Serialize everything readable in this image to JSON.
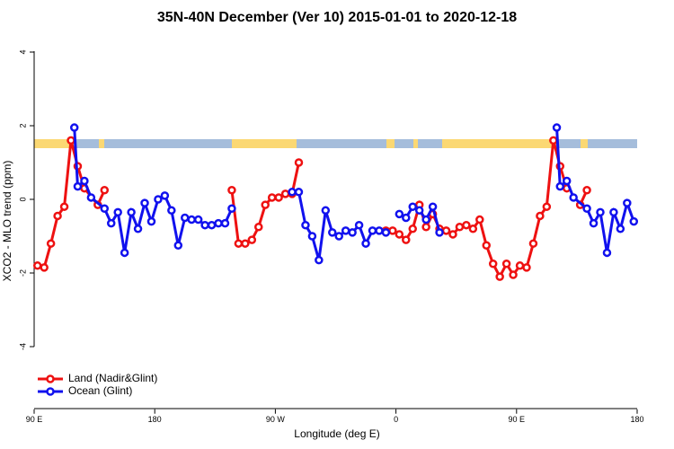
{
  "chart_data": {
    "type": "line",
    "title": "35N-40N December (Ver 10)   2015-01-01 to 2020-12-18",
    "x_label": "Longitude (deg E)",
    "y_label": "XCO2 - MLO trend (ppm)",
    "xlim": [
      90,
      540
    ],
    "ylim": [
      -5.7,
      4.4
    ],
    "xticks": [
      {
        "value": 90,
        "label": "90 E"
      },
      {
        "value": 180,
        "label": "180"
      },
      {
        "value": 270,
        "label": "90 W"
      },
      {
        "value": 360,
        "label": "0"
      },
      {
        "value": 450,
        "label": "90 E"
      },
      {
        "value": 540,
        "label": "180"
      }
    ],
    "yticks": [
      4,
      2,
      0,
      -2,
      -4
    ],
    "legend": "bottom-left",
    "series": [
      {
        "name": "Land (Nadir&Glint)",
        "color": "#ee1111",
        "x": [
          92.5,
          97.5,
          102.5,
          107.5,
          112.5,
          117.5,
          122.5,
          127.5,
          137.5,
          142.5,
          190,
          237.5,
          242.5,
          247.5,
          252.5,
          257.5,
          262.5,
          267.5,
          272.5,
          277.5,
          282.5,
          287.5,
          320,
          352.5,
          357.5,
          362.5,
          367.5,
          372.5,
          377.5,
          382.5,
          387.5,
          392.5,
          397.5,
          402.5,
          407.5,
          412.5,
          417.5,
          422.5,
          427.5,
          432.5,
          437.5,
          442.5,
          447.5,
          452.5,
          457.5,
          462.5,
          467.5,
          472.5,
          477.5,
          482.5,
          487.5,
          490,
          497.5,
          502.5
        ],
        "values": [
          -1.8,
          -1.85,
          -1.2,
          -0.45,
          -0.2,
          1.6,
          0.9,
          0.3,
          -0.15,
          0.25,
          null,
          0.25,
          -1.2,
          -1.2,
          -1.1,
          -0.75,
          -0.15,
          0.05,
          0.05,
          0.15,
          0.15,
          1.0,
          null,
          -0.85,
          -0.85,
          -0.95,
          -1.1,
          -0.8,
          -0.15,
          -0.75,
          -0.4,
          -0.8,
          -0.85,
          -0.95,
          -0.75,
          -0.7,
          -0.8,
          -0.55,
          -1.25,
          -1.75,
          -2.1,
          -1.75,
          -2.05,
          -1.8,
          -1.85,
          -1.2,
          -0.45,
          -0.2,
          1.6,
          0.9,
          0.3,
          null,
          -0.15,
          0.25
        ]
      },
      {
        "name": "Ocean (Glint)",
        "color": "#1111ee",
        "x": [
          120,
          122.5,
          127.5,
          132.5,
          142.5,
          147.5,
          152.5,
          157.5,
          162.5,
          167.5,
          172.5,
          177.5,
          182.5,
          187.5,
          192.5,
          197.5,
          202.5,
          207.5,
          212.5,
          217.5,
          222.5,
          227.5,
          232.5,
          237.5,
          260,
          282.5,
          287.5,
          292.5,
          297.5,
          302.5,
          307.5,
          312.5,
          317.5,
          322.5,
          327.5,
          332.5,
          337.5,
          342.5,
          347.5,
          352.5,
          355,
          362.5,
          367.5,
          372.5,
          377.5,
          382.5,
          387.5,
          392.5,
          440,
          480,
          482.5,
          487.5,
          492.5,
          502.5,
          507.5,
          512.5,
          517.5,
          522.5,
          527.5,
          532.5,
          537.5
        ],
        "values": [
          1.95,
          0.35,
          0.5,
          0.05,
          -0.25,
          -0.65,
          -0.35,
          -1.45,
          -0.35,
          -0.8,
          -0.1,
          -0.6,
          0,
          0.1,
          -0.3,
          -1.25,
          -0.5,
          -0.55,
          -0.55,
          -0.7,
          -0.7,
          -0.65,
          -0.65,
          -0.25,
          null,
          0.2,
          0.2,
          -0.7,
          -1.0,
          -1.65,
          -0.3,
          -0.9,
          -1.0,
          -0.85,
          -0.9,
          -0.7,
          -1.2,
          -0.85,
          -0.85,
          -0.9,
          null,
          -0.4,
          -0.5,
          -0.2,
          -0.3,
          -0.55,
          -0.2,
          -0.9,
          null,
          1.95,
          0.35,
          0.5,
          0.05,
          -0.25,
          -0.65,
          -0.35,
          -1.45,
          -0.35,
          -0.8,
          -0.1,
          -0.6
        ]
      }
    ]
  }
}
